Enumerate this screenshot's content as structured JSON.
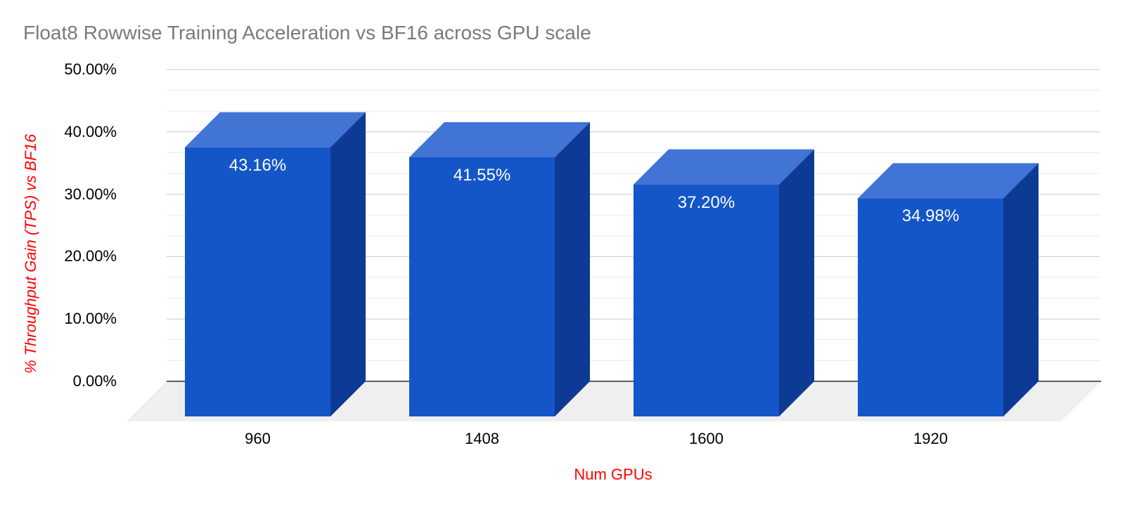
{
  "chart_data": {
    "type": "bar",
    "style": "3d-column",
    "title": "Float8 Rowwise Training Acceleration vs BF16 across GPU scale",
    "xlabel": "Num GPUs",
    "ylabel": "% Throughput Gain (TPS) vs BF16",
    "categories": [
      "960",
      "1408",
      "1600",
      "1920"
    ],
    "values": [
      43.16,
      41.55,
      37.2,
      34.98
    ],
    "value_labels": [
      "43.16%",
      "41.55%",
      "37.20%",
      "34.98%"
    ],
    "ylim": [
      0,
      50
    ],
    "yticks": [
      0,
      10,
      20,
      30,
      40,
      50
    ],
    "ytick_labels": [
      "0.00%",
      "10.00%",
      "20.00%",
      "30.00%",
      "40.00%",
      "50.00%"
    ],
    "grid": "major with 2 minor lines per interval",
    "legend": "none",
    "colors": {
      "background": "#ffffff",
      "chart_title": "#7a7a7a",
      "axis_title": "#ff0000",
      "tick_label": "#000000",
      "bar_front": "#1456c8",
      "bar_top": "#4274d6",
      "bar_side": "#0d3a94",
      "bar_label": "#ffffff",
      "floor": "#efefef",
      "baseline": "#5f5f5f",
      "grid_major": "#c9c9c9",
      "grid_minor": "#e9e9e9"
    }
  }
}
